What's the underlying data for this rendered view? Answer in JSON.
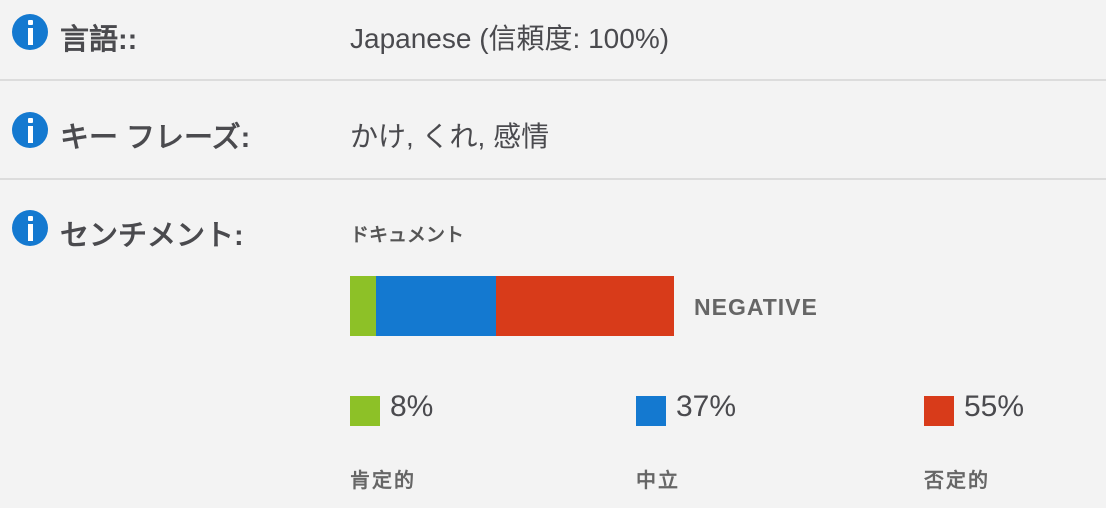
{
  "language": {
    "label": "言語::",
    "value": "Japanese (信頼度: 100%)"
  },
  "key_phrases": {
    "label": "キー フレーズ:",
    "value": "かけ, くれ, 感情"
  },
  "sentiment": {
    "label": "センチメント:",
    "scope": "ドキュメント",
    "overall": "NEGATIVE",
    "items": [
      {
        "name": "肯定的",
        "percent": 8,
        "percent_label": "8%",
        "color": "#8dc127"
      },
      {
        "name": "中立",
        "percent": 37,
        "percent_label": "37%",
        "color": "#1479d0"
      },
      {
        "name": "否定的",
        "percent": 55,
        "percent_label": "55%",
        "color": "#d83b1a"
      }
    ]
  },
  "icons": {
    "info": "info-circle-icon",
    "info_color": "#1479d0"
  }
}
